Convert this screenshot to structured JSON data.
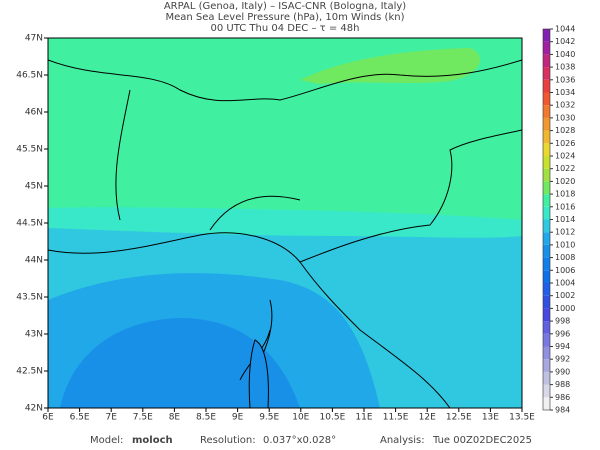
{
  "chart_data": {
    "type": "map",
    "title_lines": [
      "ARPAL (Genoa, Italy)  –  ISAC-CNR (Bologna, Italy)",
      "Mean Sea Level Pressure (hPa), 10m Winds (kn)",
      "00 UTC Thu 04 DEC  –  τ = 48h"
    ],
    "xlim": [
      6,
      13.5
    ],
    "xticks": [
      {
        "value": 6,
        "label": "6E"
      },
      {
        "value": 6.5,
        "label": "6.5E"
      },
      {
        "value": 7,
        "label": "7E"
      },
      {
        "value": 7.5,
        "label": "7.5E"
      },
      {
        "value": 8,
        "label": "8E"
      },
      {
        "value": 8.5,
        "label": "8.5E"
      },
      {
        "value": 9,
        "label": "9E"
      },
      {
        "value": 9.5,
        "label": "9.5E"
      },
      {
        "value": 10,
        "label": "10E"
      },
      {
        "value": 10.5,
        "label": "10.5E"
      },
      {
        "value": 11,
        "label": "11E"
      },
      {
        "value": 11.5,
        "label": "11.5E"
      },
      {
        "value": 12,
        "label": "12E"
      },
      {
        "value": 12.5,
        "label": "12.5E"
      },
      {
        "value": 13,
        "label": "13E"
      },
      {
        "value": 13.5,
        "label": "13.5E"
      }
    ],
    "ylim": [
      42,
      47
    ],
    "yticks": [
      {
        "value": 42,
        "label": "42N"
      },
      {
        "value": 42.5,
        "label": "42.5N"
      },
      {
        "value": 43,
        "label": "43N"
      },
      {
        "value": 43.5,
        "label": "43.5N"
      },
      {
        "value": 44,
        "label": "44N"
      },
      {
        "value": 44.5,
        "label": "44.5N"
      },
      {
        "value": 45,
        "label": "45N"
      },
      {
        "value": 45.5,
        "label": "45.5N"
      },
      {
        "value": 46,
        "label": "46N"
      },
      {
        "value": 46.5,
        "label": "46.5N"
      },
      {
        "value": 47,
        "label": "47N"
      }
    ],
    "colorbar": {
      "levels": [
        984,
        986,
        988,
        990,
        992,
        994,
        996,
        998,
        1000,
        1002,
        1004,
        1006,
        1008,
        1010,
        1012,
        1014,
        1016,
        1018,
        1020,
        1022,
        1024,
        1026,
        1028,
        1030,
        1032,
        1034,
        1036,
        1038,
        1040,
        1042,
        1044
      ],
      "colors": [
        "#f0f0f0",
        "#d8d8e8",
        "#c0c0e0",
        "#a8a8e0",
        "#9090e0",
        "#7878e0",
        "#6060e0",
        "#4848e0",
        "#3050e0",
        "#2060e8",
        "#1070e8",
        "#1080e8",
        "#1890e8",
        "#20a8e8",
        "#30c8e0",
        "#38e8c8",
        "#40f0a0",
        "#70e860",
        "#a0e040",
        "#c8e030",
        "#e8d830",
        "#f0b830",
        "#f09830",
        "#f07830",
        "#f05830",
        "#e84040",
        "#d83060",
        "#c02880",
        "#a020a0",
        "#8020b0"
      ]
    },
    "footer": {
      "model_label": "Model:",
      "model": "moloch",
      "resolution_label": "Resolution:",
      "resolution": "0.037°x0.028°",
      "analysis_label": "Analysis:",
      "analysis": "Tue 00Z02DEC2025"
    }
  }
}
